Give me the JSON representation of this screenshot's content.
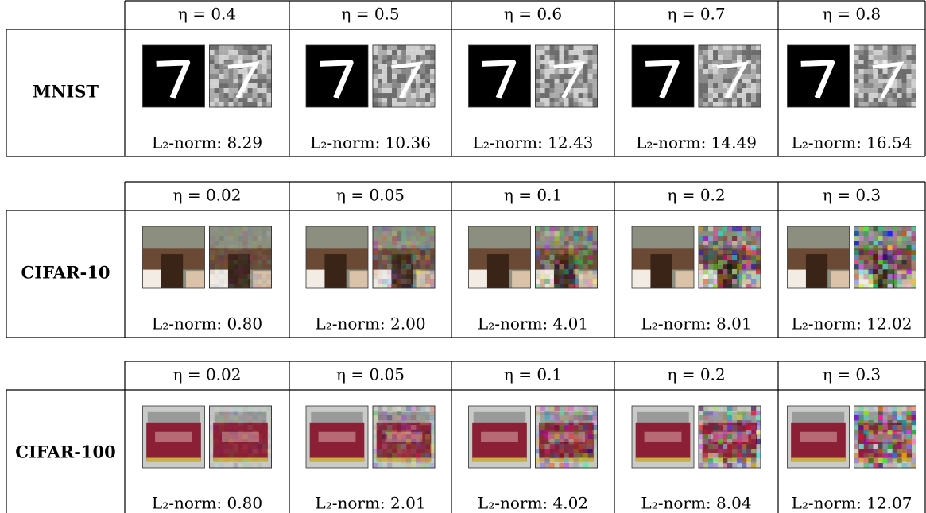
{
  "blocks": [
    {
      "dataset": "MNIST",
      "columns": [
        {
          "eta": "η = 0.4",
          "norm": "L₂-norm: 8.29"
        },
        {
          "eta": "η = 0.5",
          "norm": "L₂-norm: 10.36"
        },
        {
          "eta": "η = 0.6",
          "norm": "L₂-norm: 12.43"
        },
        {
          "eta": "η = 0.7",
          "norm": "L₂-norm: 14.49"
        },
        {
          "eta": "η = 0.8",
          "norm": "L₂-norm: 16.54"
        }
      ]
    },
    {
      "dataset": "CIFAR-10",
      "columns": [
        {
          "eta": "η = 0.02",
          "norm": "L₂-norm: 0.80"
        },
        {
          "eta": "η = 0.05",
          "norm": "L₂-norm: 2.00"
        },
        {
          "eta": "η = 0.1",
          "norm": "L₂-norm: 4.01"
        },
        {
          "eta": "η = 0.2",
          "norm": "L₂-norm: 8.01"
        },
        {
          "eta": "η = 0.3",
          "norm": "L₂-norm: 12.02"
        }
      ]
    },
    {
      "dataset": "CIFAR-100",
      "columns": [
        {
          "eta": "η = 0.02",
          "norm": "L₂-norm: 0.80"
        },
        {
          "eta": "η = 0.05",
          "norm": "L₂-norm: 2.01"
        },
        {
          "eta": "η = 0.1",
          "norm": "L₂-norm: 4.02"
        },
        {
          "eta": "η = 0.2",
          "norm": "L₂-norm: 8.04"
        },
        {
          "eta": "η = 0.3",
          "norm": "L₂-norm: 12.07"
        }
      ]
    }
  ]
}
